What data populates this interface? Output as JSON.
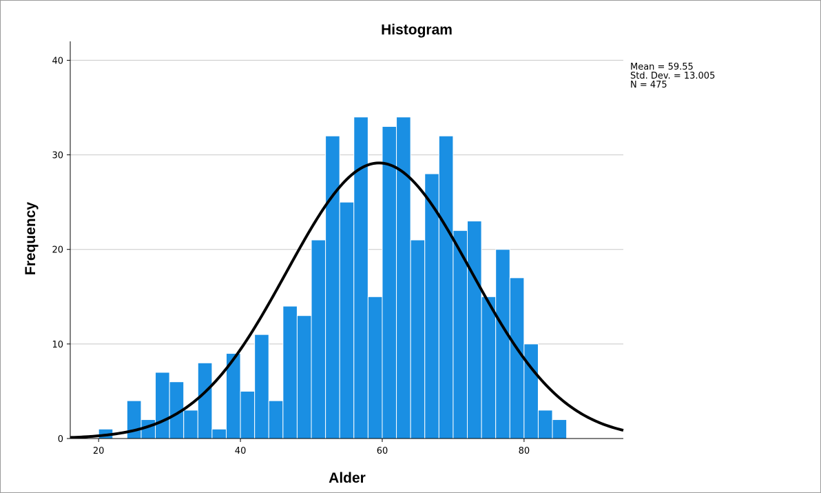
{
  "chart_data": {
    "type": "histogram",
    "title": "Histogram",
    "xlabel": "Alder",
    "ylabel": "Frequency",
    "xlim": [
      16,
      94
    ],
    "ylim": [
      0,
      42
    ],
    "x_ticks": [
      20,
      40,
      60,
      80
    ],
    "y_ticks": [
      0,
      10,
      20,
      30,
      40
    ],
    "grid": true,
    "bin_width": 2,
    "bins": [
      {
        "x0": 20,
        "x1": 22,
        "count": 1
      },
      {
        "x0": 22,
        "x1": 24,
        "count": 0
      },
      {
        "x0": 24,
        "x1": 26,
        "count": 4
      },
      {
        "x0": 26,
        "x1": 28,
        "count": 2
      },
      {
        "x0": 28,
        "x1": 30,
        "count": 7
      },
      {
        "x0": 30,
        "x1": 32,
        "count": 6
      },
      {
        "x0": 32,
        "x1": 34,
        "count": 3
      },
      {
        "x0": 34,
        "x1": 36,
        "count": 8
      },
      {
        "x0": 36,
        "x1": 38,
        "count": 1
      },
      {
        "x0": 38,
        "x1": 40,
        "count": 9
      },
      {
        "x0": 40,
        "x1": 42,
        "count": 5
      },
      {
        "x0": 42,
        "x1": 44,
        "count": 11
      },
      {
        "x0": 44,
        "x1": 46,
        "count": 4
      },
      {
        "x0": 46,
        "x1": 48,
        "count": 14
      },
      {
        "x0": 48,
        "x1": 50,
        "count": 13
      },
      {
        "x0": 50,
        "x1": 52,
        "count": 21
      },
      {
        "x0": 52,
        "x1": 54,
        "count": 32
      },
      {
        "x0": 54,
        "x1": 56,
        "count": 25
      },
      {
        "x0": 56,
        "x1": 58,
        "count": 34
      },
      {
        "x0": 58,
        "x1": 60,
        "count": 15
      },
      {
        "x0": 60,
        "x1": 62,
        "count": 33
      },
      {
        "x0": 62,
        "x1": 64,
        "count": 34
      },
      {
        "x0": 64,
        "x1": 66,
        "count": 21
      },
      {
        "x0": 66,
        "x1": 68,
        "count": 28
      },
      {
        "x0": 68,
        "x1": 70,
        "count": 32
      },
      {
        "x0": 70,
        "x1": 72,
        "count": 22
      },
      {
        "x0": 72,
        "x1": 74,
        "count": 23
      },
      {
        "x0": 74,
        "x1": 76,
        "count": 15
      },
      {
        "x0": 76,
        "x1": 78,
        "count": 20
      },
      {
        "x0": 78,
        "x1": 80,
        "count": 17
      },
      {
        "x0": 80,
        "x1": 82,
        "count": 10
      },
      {
        "x0": 82,
        "x1": 84,
        "count": 3
      },
      {
        "x0": 84,
        "x1": 86,
        "count": 2
      }
    ],
    "normal_curve": {
      "mean": 59.55,
      "std_dev": 13.005,
      "n": 475
    },
    "stats_text": [
      "Mean = 59.55",
      "Std. Dev. = 13.005",
      "N = 475"
    ],
    "colors": {
      "bar": "#1a8fe3",
      "curve": "#000000",
      "grid": "#c8c8c8"
    }
  }
}
